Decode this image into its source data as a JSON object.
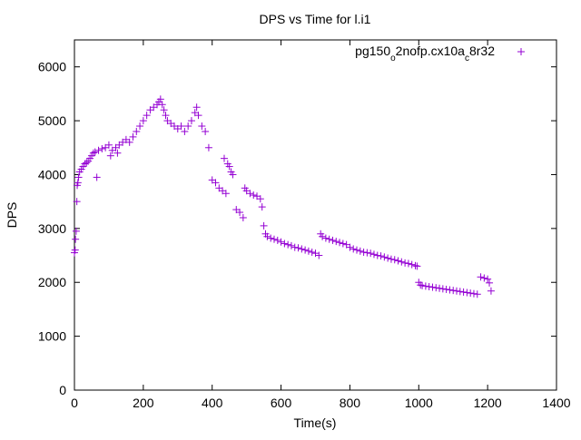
{
  "chart_data": {
    "type": "scatter",
    "title": "DPS vs Time for l.i1",
    "xlabel": "Time(s)",
    "ylabel": "DPS",
    "xlim": [
      0,
      1400
    ],
    "ylim": [
      0,
      6500
    ],
    "xticks": [
      "0",
      "200",
      "400",
      "600",
      "800",
      "1000",
      "1200",
      "1400"
    ],
    "yticks": [
      "0",
      "1000",
      "2000",
      "3000",
      "4000",
      "5000",
      "6000"
    ],
    "grid": false,
    "legend_position": "top-right",
    "marker": "+",
    "series": [
      {
        "name_parts": [
          "pg150",
          "o",
          "2nofp.cx10a",
          "c",
          "8r32"
        ],
        "color": "#9400d3",
        "points": [
          [
            0,
            2550
          ],
          [
            2,
            2600
          ],
          [
            3,
            2800
          ],
          [
            5,
            2950
          ],
          [
            7,
            3500
          ],
          [
            8,
            3800
          ],
          [
            10,
            3850
          ],
          [
            12,
            3950
          ],
          [
            15,
            4050
          ],
          [
            20,
            4100
          ],
          [
            25,
            4150
          ],
          [
            30,
            4200
          ],
          [
            35,
            4220
          ],
          [
            40,
            4250
          ],
          [
            45,
            4300
          ],
          [
            50,
            4350
          ],
          [
            55,
            4400
          ],
          [
            60,
            4420
          ],
          [
            65,
            3950
          ],
          [
            70,
            4450
          ],
          [
            80,
            4480
          ],
          [
            90,
            4500
          ],
          [
            100,
            4550
          ],
          [
            105,
            4350
          ],
          [
            110,
            4450
          ],
          [
            120,
            4500
          ],
          [
            125,
            4400
          ],
          [
            130,
            4550
          ],
          [
            140,
            4600
          ],
          [
            150,
            4650
          ],
          [
            160,
            4600
          ],
          [
            170,
            4700
          ],
          [
            180,
            4800
          ],
          [
            190,
            4900
          ],
          [
            200,
            5000
          ],
          [
            210,
            5100
          ],
          [
            220,
            5200
          ],
          [
            230,
            5250
          ],
          [
            240,
            5300
          ],
          [
            245,
            5350
          ],
          [
            250,
            5400
          ],
          [
            255,
            5300
          ],
          [
            260,
            5200
          ],
          [
            265,
            5100
          ],
          [
            270,
            5000
          ],
          [
            280,
            4950
          ],
          [
            290,
            4900
          ],
          [
            300,
            4850
          ],
          [
            310,
            4900
          ],
          [
            320,
            4800
          ],
          [
            330,
            4900
          ],
          [
            340,
            5000
          ],
          [
            350,
            5150
          ],
          [
            355,
            5250
          ],
          [
            360,
            5100
          ],
          [
            370,
            4900
          ],
          [
            380,
            4800
          ],
          [
            390,
            4500
          ],
          [
            400,
            3900
          ],
          [
            410,
            3850
          ],
          [
            420,
            3750
          ],
          [
            430,
            3700
          ],
          [
            440,
            3650
          ],
          [
            435,
            4300
          ],
          [
            445,
            4200
          ],
          [
            450,
            4150
          ],
          [
            455,
            4050
          ],
          [
            460,
            4000
          ],
          [
            470,
            3350
          ],
          [
            480,
            3300
          ],
          [
            490,
            3200
          ],
          [
            495,
            3750
          ],
          [
            500,
            3700
          ],
          [
            510,
            3650
          ],
          [
            520,
            3620
          ],
          [
            530,
            3600
          ],
          [
            540,
            3550
          ],
          [
            545,
            3400
          ],
          [
            550,
            3050
          ],
          [
            555,
            2900
          ],
          [
            560,
            2850
          ],
          [
            570,
            2820
          ],
          [
            580,
            2800
          ],
          [
            590,
            2780
          ],
          [
            600,
            2750
          ],
          [
            610,
            2720
          ],
          [
            620,
            2700
          ],
          [
            630,
            2680
          ],
          [
            640,
            2650
          ],
          [
            650,
            2640
          ],
          [
            660,
            2620
          ],
          [
            670,
            2600
          ],
          [
            680,
            2580
          ],
          [
            690,
            2560
          ],
          [
            700,
            2540
          ],
          [
            710,
            2500
          ],
          [
            715,
            2900
          ],
          [
            720,
            2850
          ],
          [
            730,
            2820
          ],
          [
            740,
            2800
          ],
          [
            750,
            2780
          ],
          [
            760,
            2760
          ],
          [
            770,
            2740
          ],
          [
            780,
            2720
          ],
          [
            790,
            2700
          ],
          [
            800,
            2650
          ],
          [
            810,
            2620
          ],
          [
            820,
            2600
          ],
          [
            830,
            2580
          ],
          [
            840,
            2560
          ],
          [
            850,
            2550
          ],
          [
            860,
            2540
          ],
          [
            870,
            2520
          ],
          [
            880,
            2500
          ],
          [
            890,
            2490
          ],
          [
            900,
            2470
          ],
          [
            910,
            2450
          ],
          [
            920,
            2430
          ],
          [
            930,
            2420
          ],
          [
            940,
            2400
          ],
          [
            950,
            2380
          ],
          [
            960,
            2360
          ],
          [
            970,
            2350
          ],
          [
            980,
            2330
          ],
          [
            990,
            2310
          ],
          [
            995,
            2300
          ],
          [
            1000,
            2000
          ],
          [
            1005,
            1950
          ],
          [
            1010,
            1940
          ],
          [
            1020,
            1930
          ],
          [
            1030,
            1920
          ],
          [
            1040,
            1910
          ],
          [
            1050,
            1900
          ],
          [
            1060,
            1890
          ],
          [
            1070,
            1880
          ],
          [
            1080,
            1870
          ],
          [
            1090,
            1860
          ],
          [
            1100,
            1850
          ],
          [
            1110,
            1840
          ],
          [
            1120,
            1830
          ],
          [
            1130,
            1820
          ],
          [
            1140,
            1810
          ],
          [
            1150,
            1800
          ],
          [
            1160,
            1790
          ],
          [
            1170,
            1780
          ],
          [
            1180,
            2100
          ],
          [
            1190,
            2080
          ],
          [
            1200,
            2060
          ],
          [
            1205,
            1990
          ],
          [
            1210,
            1840
          ]
        ]
      }
    ]
  }
}
